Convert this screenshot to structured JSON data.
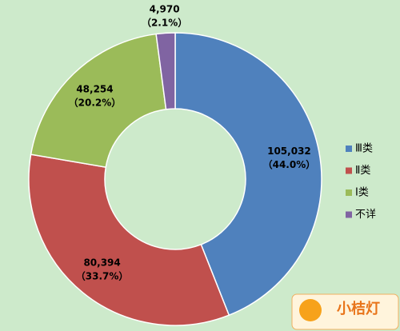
{
  "chart_data": {
    "type": "donut",
    "categories": [
      "Ⅲ类",
      "Ⅱ类",
      "Ⅰ类",
      "不详"
    ],
    "values": [
      105032,
      80394,
      48254,
      4970
    ],
    "value_labels": [
      "105,032",
      "80,394",
      "48,254",
      "4,970"
    ],
    "percents": [
      44.0,
      33.7,
      20.2,
      2.1
    ],
    "percent_labels": [
      "（44.0%）",
      "（33.7%）",
      "（20.2%）",
      "（2.1%）"
    ],
    "colors": [
      "#4f81bd",
      "#c0504d",
      "#9bbb59",
      "#8064a2"
    ],
    "legend": "right"
  },
  "watermark": "小桔灯"
}
